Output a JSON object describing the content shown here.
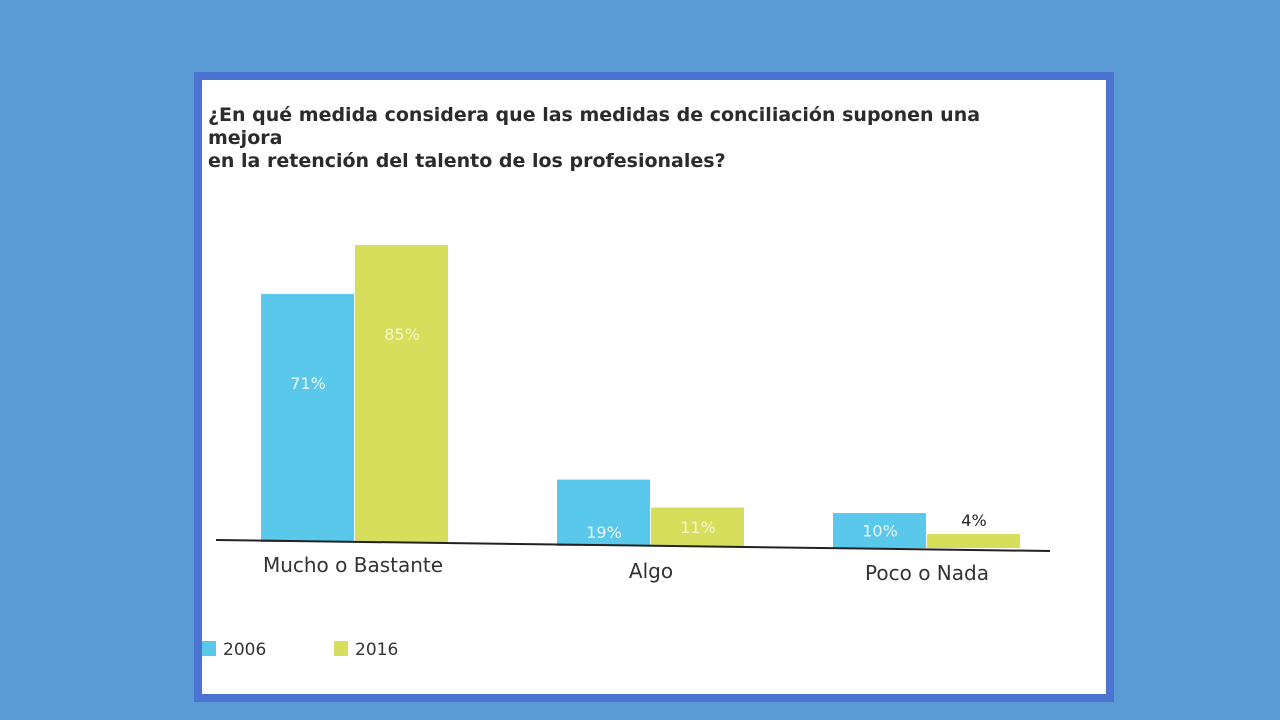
{
  "chart_data": {
    "type": "bar",
    "title": "¿En qué medida considera que las medidas de conciliación suponen una mejora\nen la retención del talento de los profesionales?",
    "categories": [
      "Mucho o Bastante",
      "Algo",
      "Poco o Nada"
    ],
    "series": [
      {
        "name": "2006",
        "color": "#59c8ea",
        "values": [
          71,
          19,
          10
        ],
        "labels": [
          "71%",
          "19%",
          "10%"
        ]
      },
      {
        "name": "2016",
        "color": "#d6de5c",
        "values": [
          85,
          11,
          4
        ],
        "labels": [
          "85%",
          "11%",
          "4%"
        ]
      }
    ],
    "ylim": [
      0,
      100
    ],
    "legend_position": "bottom-left",
    "grid": false,
    "xlabel": "",
    "ylabel": ""
  }
}
